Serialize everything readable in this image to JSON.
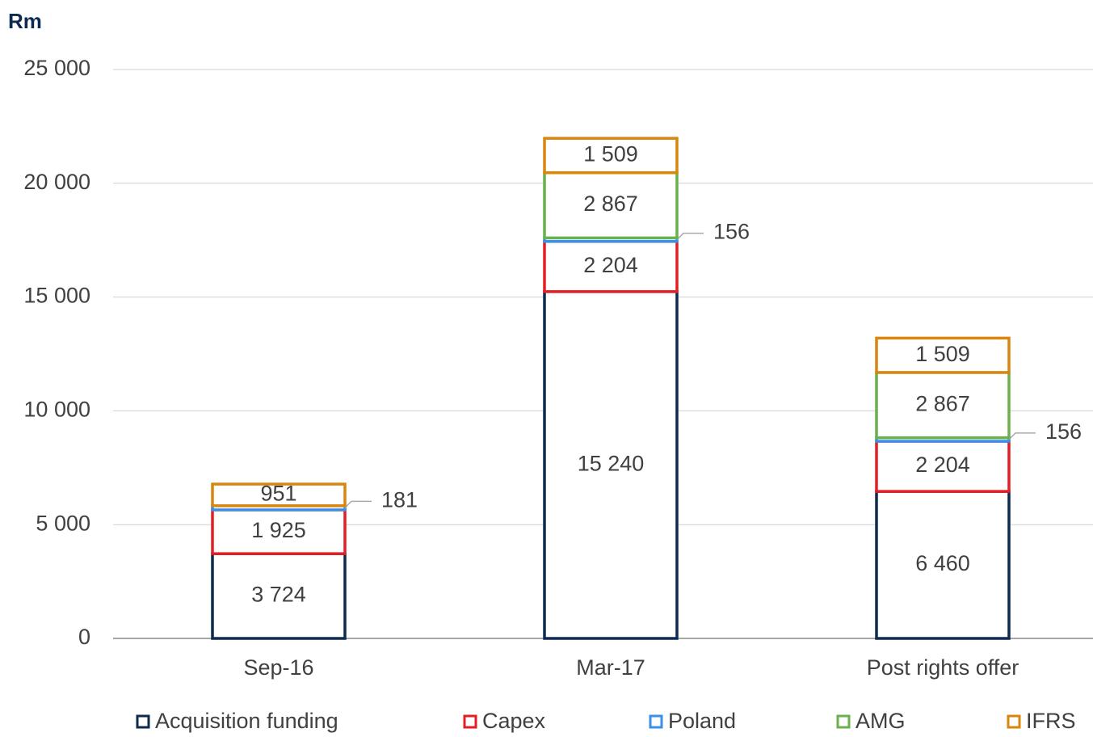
{
  "chart_data": {
    "type": "stacked_bar",
    "title": "Rm",
    "categories": [
      "Sep-16",
      "Mar-17",
      "Post rights offer"
    ],
    "series": [
      {
        "name": "Acquisition funding",
        "color": "#0d2b4e",
        "values": [
          3724,
          15240,
          6460
        ],
        "value_labels": [
          "3 724",
          "15 240",
          "6 460"
        ]
      },
      {
        "name": "Capex",
        "color": "#e31e24",
        "values": [
          1925,
          2204,
          2204
        ],
        "value_labels": [
          "1 925",
          "2 204",
          "2 204"
        ]
      },
      {
        "name": "Poland",
        "color": "#3b8fe8",
        "values": [
          181,
          156,
          156
        ],
        "value_labels": [
          "181",
          "156",
          "156"
        ]
      },
      {
        "name": "AMG",
        "color": "#6ab04c",
        "values": [
          null,
          2867,
          2867
        ],
        "value_labels": [
          null,
          "2 867",
          "2 867"
        ]
      },
      {
        "name": "IFRS",
        "color": "#d9860f",
        "values": [
          951,
          1509,
          1509
        ],
        "value_labels": [
          "951",
          "1 509",
          "1 509"
        ]
      }
    ],
    "ylim": [
      0,
      25000
    ],
    "yticks": [
      0,
      {
        "value": 5000,
        "label": "5 000"
      },
      {
        "value": 10000,
        "label": "10 000"
      },
      {
        "value": 15000,
        "label": "15 000"
      },
      {
        "value": 20000,
        "label": "20 000"
      },
      {
        "value": 25000,
        "label": "25 000"
      }
    ],
    "grid": true
  }
}
